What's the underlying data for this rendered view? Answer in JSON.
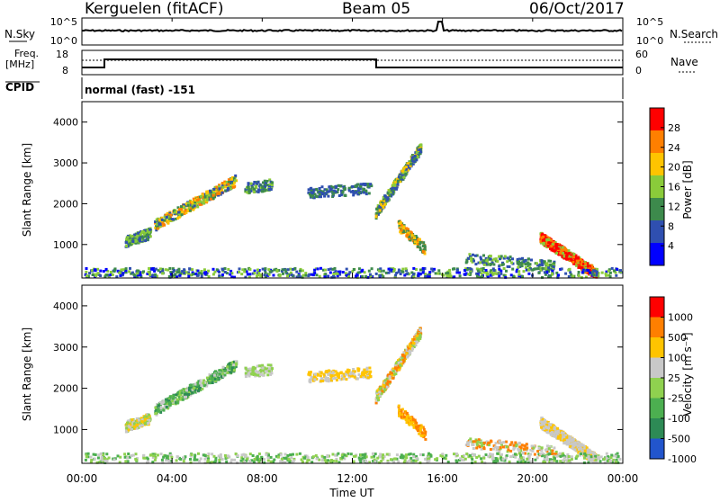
{
  "header": {
    "station": "Kerguelen (fitACF)",
    "beam": "Beam 05",
    "date": "06/Oct/2017"
  },
  "top_panels": {
    "nsky_label": "N.Sky",
    "nsky_ticks": [
      "10^5",
      "10^0"
    ],
    "nsearch_label": "N.Search",
    "nsearch_ticks": [
      "10^5",
      "10^0"
    ],
    "freq_label_1": "Freq.",
    "freq_label_2": "[MHz]",
    "freq_ticks": [
      "18",
      "8"
    ],
    "nave_label": "Nave",
    "nave_ticks": [
      "60",
      "0"
    ],
    "cpid_label": "CPID",
    "cpid_text": "normal (fast) -151"
  },
  "chart_data": [
    {
      "type": "heatmap",
      "name": "power",
      "ylabel": "Slant Range [km]",
      "yticks": [
        1000,
        2000,
        3000,
        4000
      ],
      "ylim": [
        180,
        4500
      ],
      "colorbar_label": "Power [dB]",
      "colorbar_ticks": [
        4,
        8,
        12,
        16,
        20,
        24,
        28
      ],
      "colorbar_range": [
        0,
        32
      ],
      "colors": [
        "#0000ff",
        "#2f4fb0",
        "#3d8a4c",
        "#8acb3a",
        "#ffc400",
        "#ff7f00",
        "#ff0000"
      ]
    },
    {
      "type": "heatmap",
      "name": "velocity",
      "xlabel": "Time UT",
      "ylabel": "Slant Range [km]",
      "xticks": [
        "00:00",
        "04:00",
        "08:00",
        "12:00",
        "16:00",
        "20:00",
        "00:00"
      ],
      "yticks": [
        1000,
        2000,
        3000,
        4000
      ],
      "ylim": [
        180,
        4500
      ],
      "colorbar_label": "Velocity [m s⁻¹]",
      "colorbar_ticks": [
        "1000",
        "500",
        "100",
        "25",
        "-25",
        "-100",
        "-500",
        "-1000"
      ],
      "colors": [
        "#2255cc",
        "#2d8a55",
        "#4caf50",
        "#8fd14f",
        "#c8c8c8",
        "#ffc400",
        "#ff7f00",
        "#ff0000"
      ]
    }
  ]
}
